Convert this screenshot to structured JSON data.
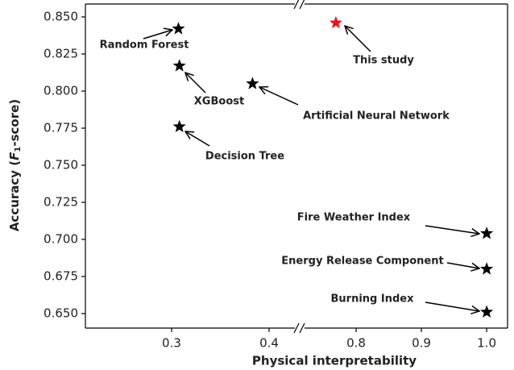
{
  "chart_data": {
    "type": "scatter",
    "xlabel": "Physical interpretability",
    "ylabel": [
      "Accuracy (",
      "F",
      "1",
      "-score)"
    ],
    "labels": [
      "Random Forest",
      "XGBoost",
      "Artificial Neural Network",
      "Decision Tree",
      "This study",
      "Fire Weather Index",
      "Energy Release Component",
      "Burning Index"
    ],
    "x": [
      0.307,
      0.308,
      0.383,
      0.308,
      0.769,
      1.0,
      1.0,
      1.0
    ],
    "values": [
      0.842,
      0.817,
      0.805,
      0.776,
      0.846,
      0.704,
      0.68,
      0.651
    ],
    "colors": [
      "#000000",
      "#000000",
      "#000000",
      "#000000",
      "#e8161b",
      "#000000",
      "#000000",
      "#000000"
    ],
    "xlim": [
      [
        0.2116,
        0.4314
      ],
      [
        0.7136,
        1.032
      ]
    ],
    "xticks": [
      0.3,
      0.4,
      0.8,
      0.9,
      {
        "value": 1,
        "label": "1.0"
      }
    ],
    "ylim": [
      0.6402,
      0.8587
    ],
    "yticks": [
      {
        "value": 0.65,
        "label": "0.650"
      },
      {
        "value": 0.675,
        "label": "0.675"
      },
      {
        "value": 0.7,
        "label": "0.700"
      },
      {
        "value": 0.725,
        "label": "0.725"
      },
      {
        "value": 0.75,
        "label": "0.750"
      },
      {
        "value": 0.775,
        "label": "0.775"
      },
      {
        "value": 0.8,
        "label": "0.800"
      },
      {
        "value": 0.825,
        "label": "0.825"
      },
      {
        "value": 0.85,
        "label": "0.850"
      }
    ]
  }
}
